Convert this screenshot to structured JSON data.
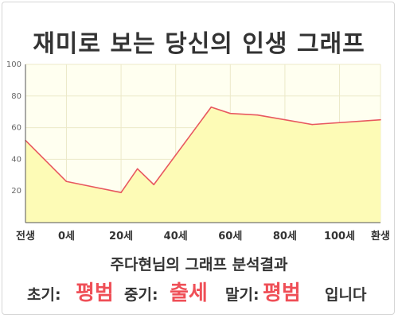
{
  "page_title": "재미로 보는 당신의 인생 그래프",
  "subtitle": "주다현님의 그래프 분석결과",
  "result": {
    "early_label": "초기:",
    "early_value": "평범",
    "mid_label": "중기:",
    "mid_value": "출세",
    "late_label": "말기:",
    "late_value": "평범",
    "suffix": "입니다"
  },
  "colors": {
    "line": "#e8585f",
    "fill": "#fdfbb6",
    "plot_bg": "#fffff0",
    "grid": "#ece9c8",
    "highlight": "#ef4f57"
  },
  "chart_data": {
    "type": "area",
    "title": "",
    "xlabel": "",
    "ylabel": "",
    "ylim": [
      0,
      100
    ],
    "y_ticks": [
      "20",
      "40",
      "60",
      "80",
      "100"
    ],
    "x_tick_labels": [
      "전생",
      "0세",
      "20세",
      "40세",
      "60세",
      "80세",
      "100세",
      "환생"
    ],
    "x_tick_positions": [
      -15,
      0,
      20,
      40,
      60,
      80,
      100,
      115
    ],
    "xlim": [
      -15,
      115
    ],
    "grid": true,
    "points": [
      {
        "x": -15,
        "y": 52
      },
      {
        "x": 0,
        "y": 26
      },
      {
        "x": 20,
        "y": 19
      },
      {
        "x": 26,
        "y": 34
      },
      {
        "x": 32,
        "y": 24
      },
      {
        "x": 53,
        "y": 73
      },
      {
        "x": 60,
        "y": 69
      },
      {
        "x": 70,
        "y": 68
      },
      {
        "x": 90,
        "y": 62
      },
      {
        "x": 115,
        "y": 65
      }
    ]
  }
}
